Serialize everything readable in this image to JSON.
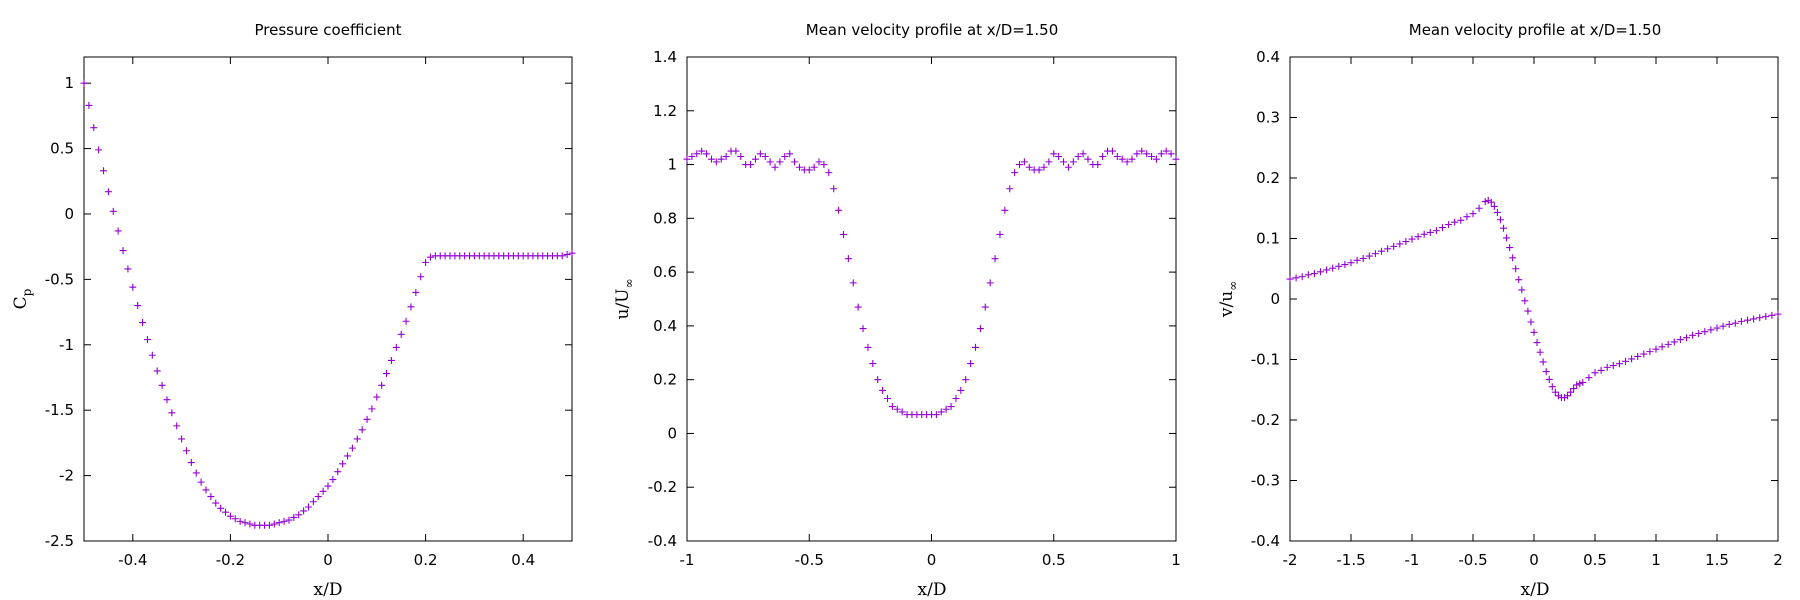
{
  "chart_data": [
    {
      "type": "scatter",
      "title": "Pressure coefficient",
      "xlabel": "x/D",
      "ylabel": "C",
      "ylabel_sub": "p",
      "xlim": [
        -0.5,
        0.5
      ],
      "ylim": [
        -2.5,
        1.2
      ],
      "xticks": [
        -0.4,
        -0.2,
        0,
        0.2,
        0.4
      ],
      "yticks": [
        -2.5,
        -2,
        -1.5,
        -1,
        -0.5,
        0,
        0.5,
        1
      ],
      "xtick_labels": [
        "-0.4",
        "-0.2",
        "0",
        "0.2",
        "0.4"
      ],
      "ytick_labels": [
        "-2.5",
        "-2",
        "-1.5",
        "-1",
        "-0.5",
        "0",
        "0.5",
        "1"
      ],
      "grid": false,
      "marker": "plus",
      "color": "#9400d3",
      "series": [
        {
          "x": [
            -0.5,
            -0.49,
            -0.48,
            -0.47,
            -0.46,
            -0.45,
            -0.44,
            -0.43,
            -0.42,
            -0.41,
            -0.4,
            -0.39,
            -0.38,
            -0.37,
            -0.36,
            -0.35,
            -0.34,
            -0.33,
            -0.32,
            -0.31,
            -0.3,
            -0.29,
            -0.28,
            -0.27,
            -0.26,
            -0.25,
            -0.24,
            -0.23,
            -0.22,
            -0.21,
            -0.2,
            -0.19,
            -0.18,
            -0.17,
            -0.16,
            -0.15,
            -0.14,
            -0.13,
            -0.12,
            -0.11,
            -0.1,
            -0.09,
            -0.08,
            -0.07,
            -0.06,
            -0.05,
            -0.04,
            -0.03,
            -0.02,
            -0.01,
            0,
            0.01,
            0.02,
            0.03,
            0.04,
            0.05,
            0.06,
            0.07,
            0.08,
            0.09,
            0.1,
            0.11,
            0.12,
            0.13,
            0.14,
            0.15,
            0.16,
            0.17,
            0.18,
            0.19,
            0.2,
            0.21,
            0.22,
            0.23,
            0.24,
            0.25,
            0.26,
            0.27,
            0.28,
            0.29,
            0.3,
            0.31,
            0.32,
            0.33,
            0.34,
            0.35,
            0.36,
            0.37,
            0.38,
            0.39,
            0.4,
            0.41,
            0.42,
            0.43,
            0.44,
            0.45,
            0.46,
            0.47,
            0.48,
            0.49,
            0.5
          ],
          "y": [
            1.0,
            0.83,
            0.66,
            0.49,
            0.33,
            0.17,
            0.02,
            -0.13,
            -0.28,
            -0.42,
            -0.56,
            -0.7,
            -0.83,
            -0.96,
            -1.08,
            -1.2,
            -1.31,
            -1.42,
            -1.52,
            -1.62,
            -1.72,
            -1.81,
            -1.9,
            -1.98,
            -2.05,
            -2.11,
            -2.16,
            -2.21,
            -2.25,
            -2.28,
            -2.31,
            -2.33,
            -2.35,
            -2.36,
            -2.37,
            -2.38,
            -2.38,
            -2.38,
            -2.38,
            -2.37,
            -2.36,
            -2.35,
            -2.34,
            -2.32,
            -2.3,
            -2.27,
            -2.24,
            -2.2,
            -2.16,
            -2.12,
            -2.08,
            -2.03,
            -1.97,
            -1.91,
            -1.85,
            -1.79,
            -1.72,
            -1.65,
            -1.57,
            -1.49,
            -1.4,
            -1.31,
            -1.22,
            -1.12,
            -1.02,
            -0.92,
            -0.82,
            -0.71,
            -0.6,
            -0.48,
            -0.37,
            -0.33,
            -0.32,
            -0.32,
            -0.32,
            -0.32,
            -0.32,
            -0.32,
            -0.32,
            -0.32,
            -0.32,
            -0.32,
            -0.32,
            -0.32,
            -0.32,
            -0.32,
            -0.32,
            -0.32,
            -0.32,
            -0.32,
            -0.32,
            -0.32,
            -0.32,
            -0.32,
            -0.32,
            -0.32,
            -0.32,
            -0.32,
            -0.32,
            -0.31,
            -0.3
          ]
        }
      ]
    },
    {
      "type": "scatter",
      "title": "Mean velocity profile at x/D=1.50",
      "xlabel": "x/D",
      "ylabel": "u/U",
      "ylabel_sub": "∞",
      "xlim": [
        -1,
        1
      ],
      "ylim": [
        -0.4,
        1.4
      ],
      "xticks": [
        -1,
        -0.5,
        0,
        0.5,
        1
      ],
      "yticks": [
        -0.4,
        -0.2,
        0,
        0.2,
        0.4,
        0.6,
        0.8,
        1,
        1.2,
        1.4
      ],
      "xtick_labels": [
        "-1",
        "-0.5",
        "0",
        "0.5",
        "1"
      ],
      "ytick_labels": [
        "-0.4",
        "-0.2",
        "0",
        "0.2",
        "0.4",
        "0.6",
        "0.8",
        "1",
        "1.2",
        "1.4"
      ],
      "grid": false,
      "marker": "plus",
      "color": "#9400d3",
      "series": [
        {
          "x": [
            -1.0,
            -0.98,
            -0.96,
            -0.94,
            -0.92,
            -0.9,
            -0.88,
            -0.86,
            -0.84,
            -0.82,
            -0.8,
            -0.78,
            -0.76,
            -0.74,
            -0.72,
            -0.7,
            -0.68,
            -0.66,
            -0.64,
            -0.62,
            -0.6,
            -0.58,
            -0.56,
            -0.54,
            -0.52,
            -0.5,
            -0.48,
            -0.46,
            -0.44,
            -0.42,
            -0.4,
            -0.38,
            -0.36,
            -0.34,
            -0.32,
            -0.3,
            -0.28,
            -0.26,
            -0.24,
            -0.22,
            -0.2,
            -0.18,
            -0.16,
            -0.14,
            -0.12,
            -0.1,
            -0.08,
            -0.06,
            -0.04,
            -0.02,
            0.0,
            0.02,
            0.04,
            0.06,
            0.08,
            0.1,
            0.12,
            0.14,
            0.16,
            0.18,
            0.2,
            0.22,
            0.24,
            0.26,
            0.28,
            0.3,
            0.32,
            0.34,
            0.36,
            0.38,
            0.4,
            0.42,
            0.44,
            0.46,
            0.48,
            0.5,
            0.52,
            0.54,
            0.56,
            0.58,
            0.6,
            0.62,
            0.64,
            0.66,
            0.68,
            0.7,
            0.72,
            0.74,
            0.76,
            0.78,
            0.8,
            0.82,
            0.84,
            0.86,
            0.88,
            0.9,
            0.92,
            0.94,
            0.96,
            0.98,
            1.0
          ],
          "y": [
            1.02,
            1.03,
            1.04,
            1.05,
            1.04,
            1.02,
            1.01,
            1.02,
            1.03,
            1.05,
            1.05,
            1.03,
            1.0,
            1.0,
            1.02,
            1.04,
            1.03,
            1.01,
            0.99,
            1.01,
            1.03,
            1.04,
            1.01,
            0.99,
            0.98,
            0.98,
            0.99,
            1.01,
            1.0,
            0.97,
            0.91,
            0.83,
            0.74,
            0.65,
            0.56,
            0.47,
            0.39,
            0.32,
            0.26,
            0.2,
            0.16,
            0.13,
            0.1,
            0.09,
            0.08,
            0.07,
            0.07,
            0.07,
            0.07,
            0.07,
            0.07,
            0.07,
            0.08,
            0.09,
            0.1,
            0.13,
            0.16,
            0.2,
            0.26,
            0.32,
            0.39,
            0.47,
            0.56,
            0.65,
            0.74,
            0.83,
            0.91,
            0.97,
            1.0,
            1.01,
            0.99,
            0.98,
            0.98,
            0.99,
            1.01,
            1.04,
            1.03,
            1.01,
            0.99,
            1.01,
            1.03,
            1.04,
            1.02,
            1.0,
            1.0,
            1.03,
            1.05,
            1.05,
            1.03,
            1.02,
            1.01,
            1.02,
            1.04,
            1.05,
            1.04,
            1.03,
            1.02,
            1.04,
            1.05,
            1.04,
            1.02
          ]
        }
      ]
    },
    {
      "type": "scatter",
      "title": "Mean velocity profile at x/D=1.50",
      "xlabel": "x/D",
      "ylabel": "v/u",
      "ylabel_sub": "∞",
      "xlim": [
        -2,
        2
      ],
      "ylim": [
        -0.4,
        0.4
      ],
      "xticks": [
        -2,
        -1.5,
        -1,
        -0.5,
        0,
        0.5,
        1,
        1.5,
        2
      ],
      "yticks": [
        -0.4,
        -0.3,
        -0.2,
        -0.1,
        0,
        0.1,
        0.2,
        0.3,
        0.4
      ],
      "xtick_labels": [
        "-2",
        "-1.5",
        "-1",
        "-0.5",
        "0",
        "0.5",
        "1",
        "1.5",
        "2"
      ],
      "ytick_labels": [
        "-0.4",
        "-0.3",
        "-0.2",
        "-0.1",
        "0",
        "0.1",
        "0.2",
        "0.3",
        "0.4"
      ],
      "grid": false,
      "marker": "plus",
      "color": "#9400d3",
      "series": [
        {
          "x": [
            -2.0,
            -1.95,
            -1.9,
            -1.85,
            -1.8,
            -1.75,
            -1.7,
            -1.65,
            -1.6,
            -1.55,
            -1.5,
            -1.45,
            -1.4,
            -1.35,
            -1.3,
            -1.25,
            -1.2,
            -1.15,
            -1.1,
            -1.05,
            -1.0,
            -0.95,
            -0.9,
            -0.85,
            -0.8,
            -0.75,
            -0.7,
            -0.65,
            -0.6,
            -0.55,
            -0.5,
            -0.45,
            -0.4,
            -0.375,
            -0.35,
            -0.325,
            -0.3,
            -0.275,
            -0.25,
            -0.225,
            -0.2,
            -0.175,
            -0.15,
            -0.125,
            -0.1,
            -0.075,
            -0.05,
            -0.025,
            0.0,
            0.025,
            0.05,
            0.075,
            0.1,
            0.125,
            0.15,
            0.175,
            0.2,
            0.225,
            0.25,
            0.275,
            0.3,
            0.325,
            0.35,
            0.375,
            0.4,
            0.45,
            0.5,
            0.55,
            0.6,
            0.65,
            0.7,
            0.75,
            0.8,
            0.85,
            0.9,
            0.95,
            1.0,
            1.05,
            1.1,
            1.15,
            1.2,
            1.25,
            1.3,
            1.35,
            1.4,
            1.45,
            1.5,
            1.55,
            1.6,
            1.65,
            1.7,
            1.75,
            1.8,
            1.85,
            1.9,
            1.95,
            2.0
          ],
          "y": [
            0.033,
            0.035,
            0.037,
            0.04,
            0.042,
            0.045,
            0.048,
            0.051,
            0.054,
            0.057,
            0.06,
            0.064,
            0.067,
            0.071,
            0.075,
            0.079,
            0.083,
            0.087,
            0.091,
            0.095,
            0.099,
            0.103,
            0.107,
            0.11,
            0.113,
            0.118,
            0.123,
            0.127,
            0.13,
            0.136,
            0.141,
            0.15,
            0.161,
            0.163,
            0.16,
            0.153,
            0.143,
            0.131,
            0.117,
            0.101,
            0.085,
            0.068,
            0.05,
            0.032,
            0.015,
            -0.003,
            -0.02,
            -0.038,
            -0.055,
            -0.072,
            -0.088,
            -0.104,
            -0.12,
            -0.133,
            -0.145,
            -0.154,
            -0.16,
            -0.163,
            -0.163,
            -0.16,
            -0.154,
            -0.148,
            -0.142,
            -0.14,
            -0.138,
            -0.13,
            -0.122,
            -0.118,
            -0.113,
            -0.11,
            -0.107,
            -0.103,
            -0.099,
            -0.095,
            -0.091,
            -0.087,
            -0.083,
            -0.079,
            -0.075,
            -0.071,
            -0.067,
            -0.064,
            -0.06,
            -0.057,
            -0.054,
            -0.051,
            -0.048,
            -0.045,
            -0.042,
            -0.04,
            -0.037,
            -0.035,
            -0.033,
            -0.031,
            -0.029,
            -0.027,
            -0.025
          ]
        }
      ]
    }
  ]
}
